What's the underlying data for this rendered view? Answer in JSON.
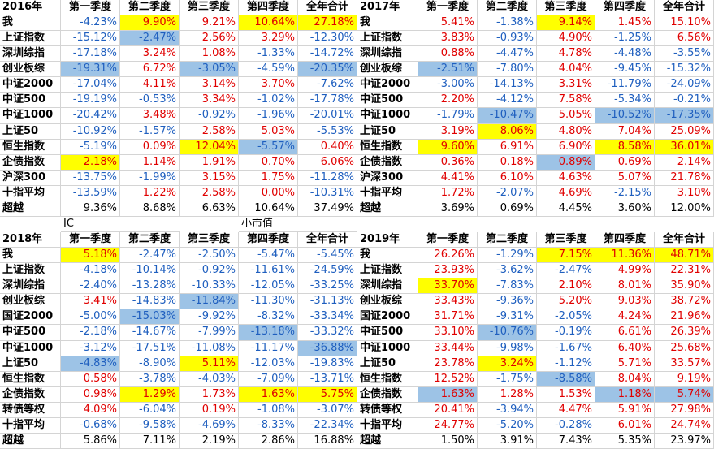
{
  "blocks": [
    {
      "header": [
        "2016年",
        "第一季度",
        "第二季度",
        "第三季度",
        "第四季度",
        "全年合计"
      ],
      "rows": [
        [
          "我",
          "-4.23%",
          "9.90%",
          "9.21%",
          "10.64%",
          "27.18%"
        ],
        [
          "上证指数",
          "-15.12%",
          "-2.47%",
          "2.56%",
          "3.29%",
          "-12.30%"
        ],
        [
          "深圳综指",
          "-17.18%",
          "3.24%",
          "1.08%",
          "-1.33%",
          "-14.72%"
        ],
        [
          "创业板综",
          "-19.31%",
          "6.72%",
          "-3.05%",
          "-4.59%",
          "-20.35%"
        ],
        [
          "中证2000",
          "-17.04%",
          "4.11%",
          "3.14%",
          "3.70%",
          "-7.62%"
        ],
        [
          "中证500",
          "-19.19%",
          "-0.53%",
          "3.34%",
          "-1.02%",
          "-17.78%"
        ],
        [
          "中证1000",
          "-20.42%",
          "3.48%",
          "-0.92%",
          "-1.96%",
          "-20.01%"
        ],
        [
          "上证50",
          "-10.92%",
          "-1.57%",
          "2.58%",
          "5.03%",
          "-5.53%"
        ],
        [
          "恒生指数",
          "-5.19%",
          "0.09%",
          "12.04%",
          "-5.57%",
          "0.40%"
        ],
        [
          "企债指数",
          "2.18%",
          "1.14%",
          "1.91%",
          "0.70%",
          "6.06%"
        ],
        [
          "沪深300",
          "-13.75%",
          "-1.99%",
          "3.15%",
          "1.75%",
          "-11.28%"
        ],
        [
          "十指平均",
          "-13.59%",
          "1.22%",
          "2.58%",
          "0.00%",
          "-10.31%"
        ],
        [
          "超越",
          "9.36%",
          "8.68%",
          "6.63%",
          "10.64%",
          "37.49%"
        ]
      ]
    },
    {
      "header": [
        "2017年",
        "第一季度",
        "第二季度",
        "第三季度",
        "第四季度",
        "全年合计"
      ],
      "rows": [
        [
          "我",
          "5.41%",
          "-1.38%",
          "9.14%",
          "1.45%",
          "15.10%"
        ],
        [
          "上证指数",
          "3.83%",
          "-0.93%",
          "4.90%",
          "-1.25%",
          "6.56%"
        ],
        [
          "深圳综指",
          "0.88%",
          "-4.47%",
          "4.78%",
          "-4.48%",
          "-3.55%"
        ],
        [
          "创业板综",
          "-2.51%",
          "-7.80%",
          "4.04%",
          "-9.45%",
          "-15.32%"
        ],
        [
          "中证2000",
          "-3.00%",
          "-14.13%",
          "3.31%",
          "-11.79%",
          "-24.09%"
        ],
        [
          "中证500",
          "2.20%",
          "-4.12%",
          "7.58%",
          "-5.34%",
          "-0.21%"
        ],
        [
          "中证1000",
          "-1.79%",
          "-10.47%",
          "5.05%",
          "-10.52%",
          "-17.35%"
        ],
        [
          "上证50",
          "3.19%",
          "8.06%",
          "4.80%",
          "7.04%",
          "25.09%"
        ],
        [
          "恒生指数",
          "9.60%",
          "6.91%",
          "6.90%",
          "8.58%",
          "36.01%"
        ],
        [
          "企债指数",
          "0.36%",
          "0.18%",
          "0.89%",
          "0.69%",
          "2.14%"
        ],
        [
          "沪深300",
          "4.41%",
          "6.10%",
          "4.63%",
          "5.07%",
          "21.78%"
        ],
        [
          "十指平均",
          "1.72%",
          "-2.07%",
          "4.69%",
          "-2.15%",
          "3.10%"
        ],
        [
          "超越",
          "3.69%",
          "0.69%",
          "4.45%",
          "3.60%",
          "12.00%"
        ]
      ]
    },
    {
      "header": [
        "2018年",
        "第一季度",
        "第二季度",
        "第三季度",
        "第四季度",
        "全年合计"
      ],
      "rows": [
        [
          "我",
          "5.18%",
          "-2.47%",
          "-2.50%",
          "-5.47%",
          "-5.45%"
        ],
        [
          "上证指数",
          "-4.18%",
          "-10.14%",
          "-0.92%",
          "-11.61%",
          "-24.59%"
        ],
        [
          "深圳综指",
          "-2.40%",
          "-13.28%",
          "-10.33%",
          "-12.05%",
          "-33.25%"
        ],
        [
          "创业板综",
          "3.41%",
          "-14.83%",
          "-11.84%",
          "-11.30%",
          "-31.13%"
        ],
        [
          "国证2000",
          "-5.00%",
          "-15.03%",
          "-9.92%",
          "-8.32%",
          "-33.34%"
        ],
        [
          "中证500",
          "-2.18%",
          "-14.67%",
          "-7.99%",
          "-13.18%",
          "-33.32%"
        ],
        [
          "中证1000",
          "-3.12%",
          "-17.51%",
          "-11.08%",
          "-11.17%",
          "-36.88%"
        ],
        [
          "上证50",
          "-4.83%",
          "-8.90%",
          "5.11%",
          "-12.03%",
          "-19.83%"
        ],
        [
          "恒生指数",
          "0.58%",
          "-3.78%",
          "-4.03%",
          "-7.09%",
          "-13.71%"
        ],
        [
          "企债指数",
          "0.98%",
          "1.29%",
          "1.73%",
          "1.63%",
          "5.75%"
        ],
        [
          "转债等权",
          "4.09%",
          "-6.04%",
          "0.19%",
          "-1.08%",
          "-3.07%"
        ],
        [
          "十指平均",
          "-0.68%",
          "-9.58%",
          "-4.69%",
          "-8.33%",
          "-22.34%"
        ],
        [
          "超越",
          "5.86%",
          "7.11%",
          "2.19%",
          "2.86%",
          "16.88%"
        ]
      ]
    },
    {
      "header": [
        "2019年",
        "第一季度",
        "第二季度",
        "第三季度",
        "第四季度",
        "全年合计"
      ],
      "rows": [
        [
          "我",
          "26.26%",
          "-1.29%",
          "7.15%",
          "11.36%",
          "48.71%"
        ],
        [
          "上证指数",
          "23.93%",
          "-3.62%",
          "-2.47%",
          "4.99%",
          "22.31%"
        ],
        [
          "深圳综指",
          "33.70%",
          "-7.83%",
          "2.10%",
          "8.01%",
          "35.90%"
        ],
        [
          "创业板综",
          "33.43%",
          "-9.36%",
          "5.20%",
          "9.03%",
          "38.72%"
        ],
        [
          "国证2000",
          "31.71%",
          "-9.31%",
          "-2.05%",
          "4.24%",
          "21.96%"
        ],
        [
          "中证500",
          "33.10%",
          "-10.76%",
          "-0.19%",
          "6.61%",
          "26.39%"
        ],
        [
          "中证1000",
          "33.44%",
          "-9.98%",
          "-1.67%",
          "6.40%",
          "25.68%"
        ],
        [
          "上证50",
          "23.78%",
          "3.24%",
          "-1.12%",
          "5.71%",
          "33.57%"
        ],
        [
          "恒生指数",
          "12.52%",
          "-1.75%",
          "-8.58%",
          "8.04%",
          "9.19%"
        ],
        [
          "企债指数",
          "1.63%",
          "1.28%",
          "1.53%",
          "1.18%",
          "5.74%"
        ],
        [
          "转债等权",
          "20.41%",
          "-3.94%",
          "4.47%",
          "5.91%",
          "27.98%"
        ],
        [
          "十指平均",
          "24.77%",
          "-5.20%",
          "-0.28%",
          "6.01%",
          "24.74%"
        ],
        [
          "超越",
          "1.50%",
          "3.91%",
          "7.43%",
          "5.35%",
          "23.97%"
        ]
      ]
    }
  ],
  "notes": [
    "IC",
    "小市值"
  ]
}
